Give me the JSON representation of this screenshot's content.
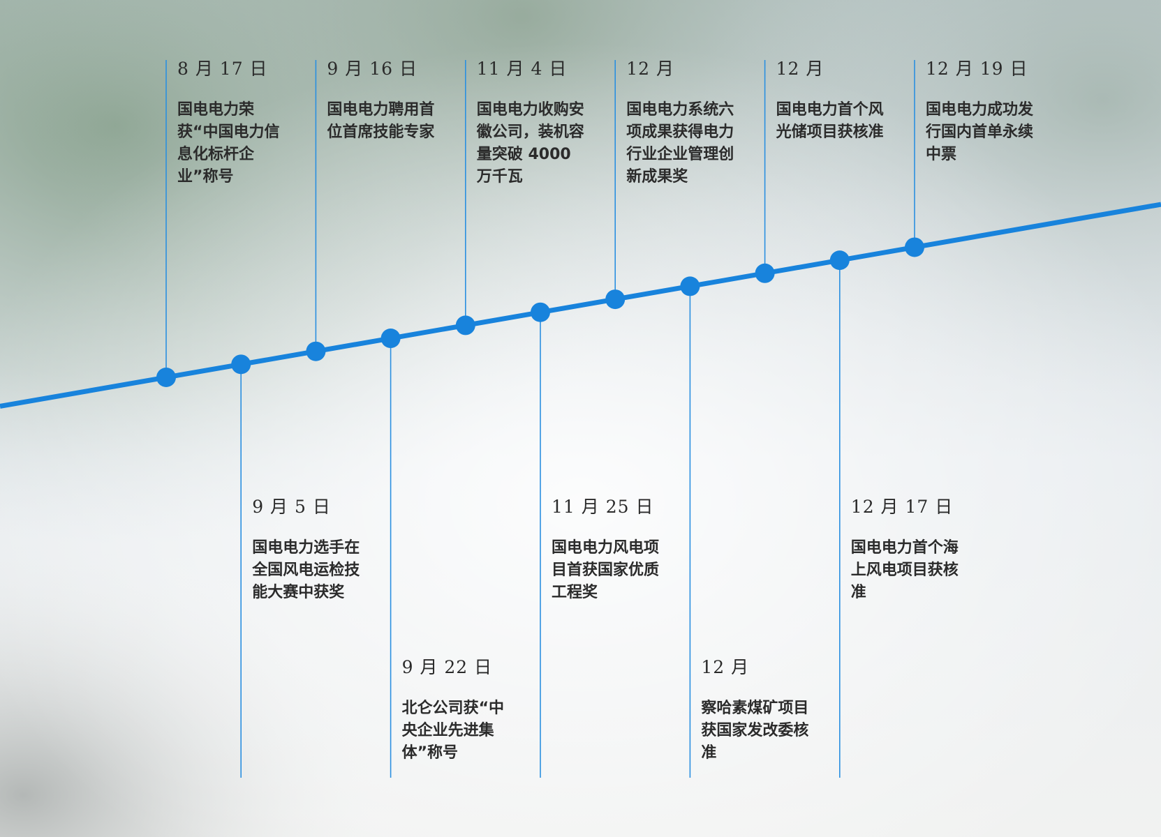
{
  "colors": {
    "line": "#1883dc",
    "connector": "#2a8fe0",
    "text": "#2b2b2b"
  },
  "events": [
    {
      "date": "8 月 17 日",
      "text": "国电电力荣获“中国电力信息化标杆企业”称号",
      "position": "above"
    },
    {
      "date": "9 月 5 日",
      "text": "国电电力选手在全国风电运检技能大赛中获奖",
      "position": "below"
    },
    {
      "date": "9 月 16 日",
      "text": "国电电力聘用首位首席技能专家",
      "position": "above"
    },
    {
      "date": "9 月 22 日",
      "text": "北仑公司获“中央企业先进集体”称号",
      "position": "below"
    },
    {
      "date": "11 月 4 日",
      "text": "国电电力收购安徽公司，装机容量突破 4000 万千瓦",
      "position": "above"
    },
    {
      "date": "11 月 25 日",
      "text": "国电电力风电项目首获国家优质工程奖",
      "position": "below"
    },
    {
      "date": "12 月",
      "text": "国电电力系统六项成果获得电力行业企业管理创新成果奖",
      "position": "above"
    },
    {
      "date": "12 月",
      "text": "察哈素煤矿项目获国家发改委核准",
      "position": "below"
    },
    {
      "date": "12 月",
      "text": "国电电力首个风光储项目获核准",
      "position": "above"
    },
    {
      "date": "12 月 17 日",
      "text": "国电电力首个海上风电项目获核准",
      "position": "below"
    },
    {
      "date": "12 月 19 日",
      "text": "国电电力成功发行国内首单永续中票",
      "position": "above"
    }
  ]
}
